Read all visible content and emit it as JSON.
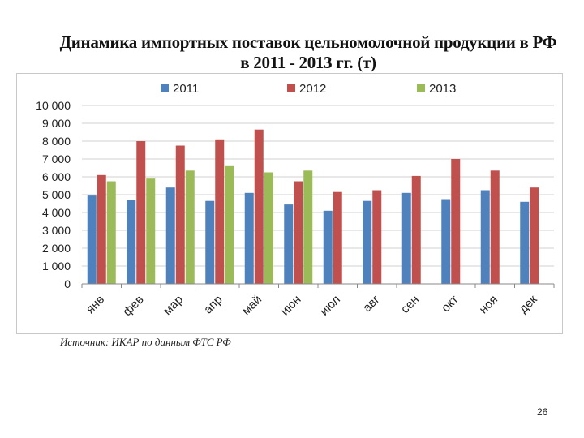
{
  "title": {
    "line1": "Динамика импортных поставок цельномолочной продукции в РФ",
    "line2": "в 2011 - 2013 гг. (т)"
  },
  "source": "Источник: ИКАР по данным ФТС РФ",
  "page_number": "26",
  "chart_data": {
    "type": "bar",
    "title": "Динамика импортных поставок цельномолочной продукции в РФ в 2011 - 2013 гг. (т)",
    "categories": [
      "янв",
      "фев",
      "мар",
      "апр",
      "май",
      "июн",
      "июл",
      "авг",
      "сен",
      "окт",
      "ноя",
      "дек"
    ],
    "series": [
      {
        "name": "2011",
        "color": "#4f81bd",
        "values": [
          4950,
          4700,
          5400,
          4650,
          5100,
          4450,
          4100,
          4650,
          5100,
          4750,
          5250,
          4600
        ]
      },
      {
        "name": "2012",
        "color": "#c0504d",
        "values": [
          6100,
          8000,
          7750,
          8100,
          8650,
          5750,
          5150,
          5250,
          6050,
          7000,
          6350,
          5400
        ]
      },
      {
        "name": "2013",
        "color": "#9bbb59",
        "values": [
          5750,
          5900,
          6350,
          6600,
          6250,
          6350,
          null,
          null,
          null,
          null,
          null,
          null
        ]
      }
    ],
    "ylim": [
      0,
      10000
    ],
    "yticks": [
      "0",
      "1 000",
      "2 000",
      "3 000",
      "4 000",
      "5 000",
      "6 000",
      "7 000",
      "8 000",
      "9 000",
      "10 000"
    ],
    "grid": true,
    "legend": "top"
  }
}
